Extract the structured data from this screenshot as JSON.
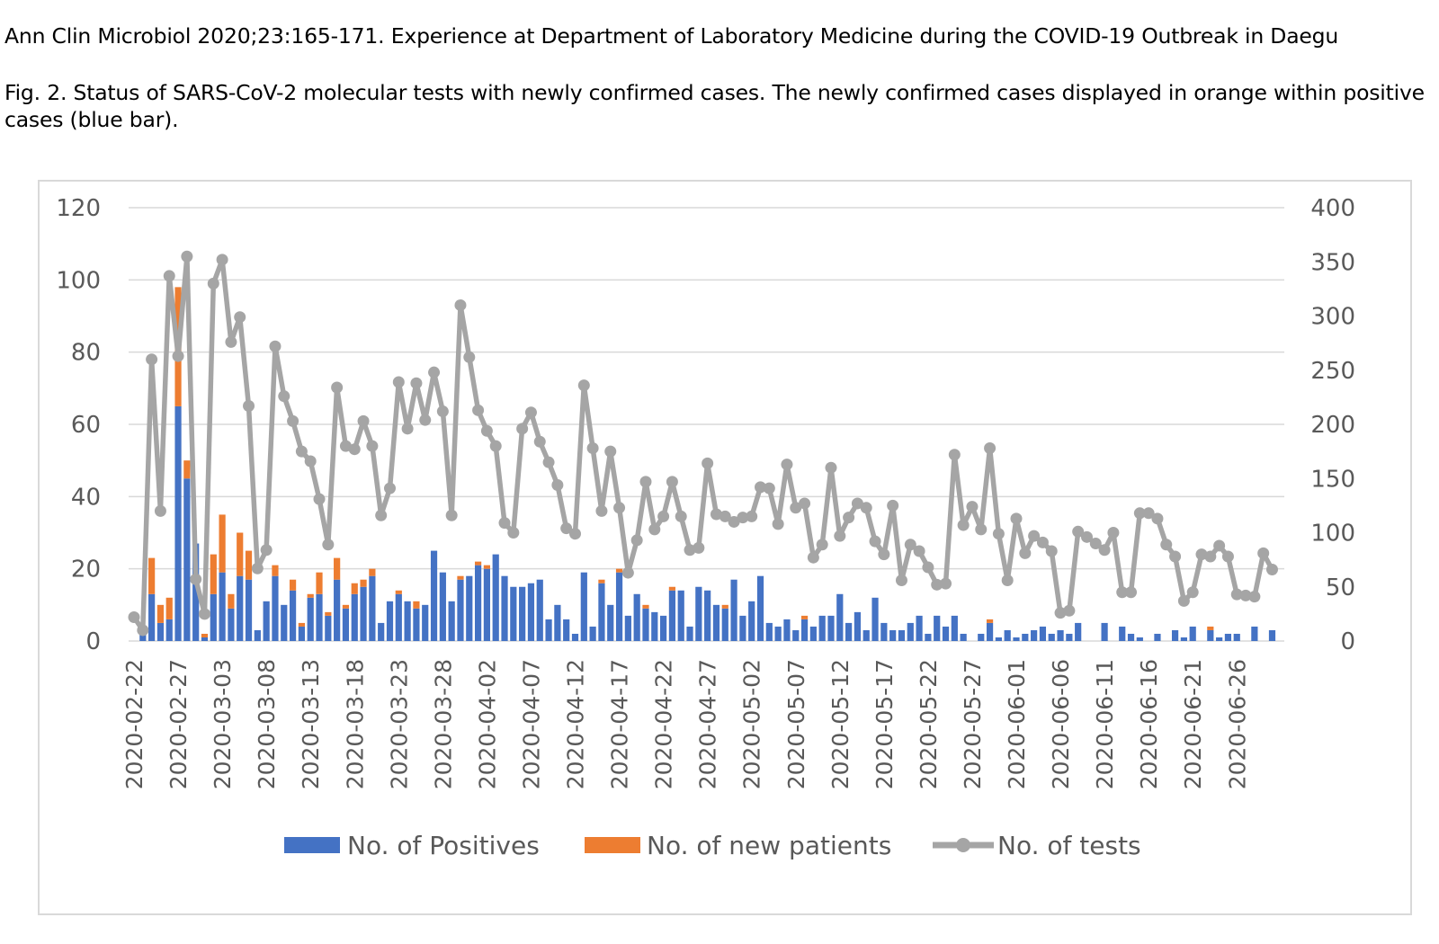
{
  "citation": "Ann Clin Microbiol 2020;23:165-171. Experience at Department of Laboratory Medicine during the COVID-19 Outbreak in Daegu",
  "caption": "Fig. 2. Status of SARS-CoV-2 molecular tests with newly confirmed cases. The newly confirmed cases displayed in orange within positive cases (blue bar).",
  "colors": {
    "positives": "#4472c4",
    "new_patients": "#ed7d31",
    "tests": "#a5a5a5",
    "grid": "#d9d9d9",
    "tick_text": "#595959"
  },
  "chart_data": {
    "type": "bar",
    "combo": "stacked bars (left axis) with line (right axis)",
    "start_date": "2020-02-22",
    "categories": [
      "2020-02-22",
      "2020-02-23",
      "2020-02-24",
      "2020-02-25",
      "2020-02-26",
      "2020-02-27",
      "2020-02-28",
      "2020-02-29",
      "2020-03-01",
      "2020-03-02",
      "2020-03-03",
      "2020-03-04",
      "2020-03-05",
      "2020-03-06",
      "2020-03-07",
      "2020-03-08",
      "2020-03-09",
      "2020-03-10",
      "2020-03-11",
      "2020-03-12",
      "2020-03-13",
      "2020-03-14",
      "2020-03-15",
      "2020-03-16",
      "2020-03-17",
      "2020-03-18",
      "2020-03-19",
      "2020-03-20",
      "2020-03-21",
      "2020-03-22",
      "2020-03-23",
      "2020-03-24",
      "2020-03-25",
      "2020-03-26",
      "2020-03-27",
      "2020-03-28",
      "2020-03-29",
      "2020-03-30",
      "2020-03-31",
      "2020-04-01",
      "2020-04-02",
      "2020-04-03",
      "2020-04-04",
      "2020-04-05",
      "2020-04-06",
      "2020-04-07",
      "2020-04-08",
      "2020-04-09",
      "2020-04-10",
      "2020-04-11",
      "2020-04-12",
      "2020-04-13",
      "2020-04-14",
      "2020-04-15",
      "2020-04-16",
      "2020-04-17",
      "2020-04-18",
      "2020-04-19",
      "2020-04-20",
      "2020-04-21",
      "2020-04-22",
      "2020-04-23",
      "2020-04-24",
      "2020-04-25",
      "2020-04-26",
      "2020-04-27",
      "2020-04-28",
      "2020-04-29",
      "2020-04-30",
      "2020-05-01",
      "2020-05-02",
      "2020-05-03",
      "2020-05-04",
      "2020-05-05",
      "2020-05-06",
      "2020-05-07",
      "2020-05-08",
      "2020-05-09",
      "2020-05-10",
      "2020-05-11",
      "2020-05-12",
      "2020-05-13",
      "2020-05-14",
      "2020-05-15",
      "2020-05-16",
      "2020-05-17",
      "2020-05-18",
      "2020-05-19",
      "2020-05-20",
      "2020-05-21",
      "2020-05-22",
      "2020-05-23",
      "2020-05-24",
      "2020-05-25",
      "2020-05-26",
      "2020-05-27",
      "2020-05-28",
      "2020-05-29",
      "2020-05-30",
      "2020-05-31",
      "2020-06-01",
      "2020-06-02",
      "2020-06-03",
      "2020-06-04",
      "2020-06-05",
      "2020-06-06",
      "2020-06-07",
      "2020-06-08",
      "2020-06-09",
      "2020-06-10",
      "2020-06-11",
      "2020-06-12",
      "2020-06-13",
      "2020-06-14",
      "2020-06-15",
      "2020-06-16",
      "2020-06-17",
      "2020-06-18",
      "2020-06-19",
      "2020-06-20",
      "2020-06-21",
      "2020-06-22",
      "2020-06-23",
      "2020-06-24",
      "2020-06-25",
      "2020-06-26",
      "2020-06-27",
      "2020-06-28",
      "2020-06-29",
      "2020-06-30"
    ],
    "x_tick_labels": [
      "2020-02-22",
      "2020-02-27",
      "2020-03-03",
      "2020-03-08",
      "2020-03-13",
      "2020-03-18",
      "2020-03-23",
      "2020-03-28",
      "2020-04-02",
      "2020-04-07",
      "2020-04-12",
      "2020-04-17",
      "2020-04-22",
      "2020-04-27",
      "2020-05-02",
      "2020-05-07",
      "2020-05-12",
      "2020-05-17",
      "2020-05-22",
      "2020-05-27",
      "2020-06-01",
      "2020-06-06",
      "2020-06-11",
      "2020-06-16",
      "2020-06-21",
      "2020-06-26"
    ],
    "series": [
      {
        "name": "No. of Positives",
        "axis": "left",
        "type": "bar",
        "values": [
          0,
          2,
          13,
          5,
          6,
          65,
          45,
          27,
          1,
          13,
          19,
          9,
          18,
          17,
          3,
          11,
          18,
          10,
          14,
          4,
          12,
          13,
          7,
          17,
          9,
          13,
          15,
          18,
          5,
          11,
          13,
          11,
          9,
          10,
          25,
          19,
          11,
          17,
          18,
          21,
          20,
          24,
          18,
          15,
          15,
          16,
          17,
          6,
          10,
          6,
          2,
          19,
          4,
          16,
          10,
          19,
          7,
          13,
          9,
          8,
          7,
          14,
          14,
          4,
          15,
          14,
          10,
          9,
          17,
          7,
          11,
          18,
          5,
          4,
          6,
          3,
          6,
          4,
          7,
          7,
          13,
          5,
          8,
          3,
          12,
          5,
          3,
          3,
          5,
          7,
          2,
          7,
          4,
          7,
          2,
          0,
          2,
          5,
          1,
          3,
          1,
          2,
          3,
          4,
          2,
          3,
          2,
          5,
          0,
          0,
          5,
          0,
          4,
          2,
          1,
          0,
          2,
          0,
          3,
          1,
          4,
          0,
          3,
          1,
          2,
          2,
          0,
          4,
          0,
          3
        ]
      },
      {
        "name": "No. of new patients",
        "axis": "left",
        "type": "bar",
        "stacked_on": "No. of Positives",
        "values": [
          0,
          0,
          10,
          5,
          6,
          33,
          5,
          0,
          1,
          11,
          16,
          4,
          12,
          8,
          0,
          0,
          3,
          0,
          3,
          1,
          1,
          6,
          1,
          6,
          1,
          3,
          2,
          2,
          0,
          0,
          1,
          0,
          2,
          0,
          0,
          0,
          0,
          1,
          0,
          1,
          1,
          0,
          0,
          0,
          0,
          0,
          0,
          0,
          0,
          0,
          0,
          0,
          0,
          1,
          0,
          1,
          0,
          0,
          1,
          0,
          0,
          1,
          0,
          0,
          0,
          0,
          0,
          1,
          0,
          0,
          0,
          0,
          0,
          0,
          0,
          0,
          1,
          0,
          0,
          0,
          0,
          0,
          0,
          0,
          0,
          0,
          0,
          0,
          0,
          0,
          0,
          0,
          0,
          0,
          0,
          0,
          0,
          1,
          0,
          0,
          0,
          0,
          0,
          0,
          0,
          0,
          0,
          0,
          0,
          0,
          0,
          0,
          0,
          0,
          0,
          0,
          0,
          0,
          0,
          0,
          0,
          0,
          1,
          0,
          0,
          0,
          0,
          0,
          0,
          0
        ]
      },
      {
        "name": "No. of tests",
        "axis": "right",
        "type": "line",
        "values": [
          22,
          10,
          260,
          120,
          337,
          263,
          355,
          57,
          25,
          330,
          352,
          276,
          299,
          217,
          67,
          84,
          272,
          226,
          203,
          175,
          166,
          131,
          89,
          234,
          180,
          177,
          203,
          180,
          116,
          141,
          239,
          196,
          238,
          204,
          248,
          212,
          116,
          310,
          262,
          213,
          194,
          180,
          109,
          100,
          196,
          211,
          184,
          165,
          144,
          104,
          99,
          236,
          178,
          120,
          175,
          123,
          63,
          93,
          147,
          103,
          115,
          147,
          115,
          84,
          86,
          164,
          117,
          115,
          110,
          114,
          115,
          142,
          141,
          108,
          163,
          123,
          127,
          77,
          89,
          160,
          97,
          114,
          127,
          123,
          92,
          80,
          125,
          56,
          89,
          83,
          68,
          52,
          53,
          172,
          107,
          124,
          103,
          178,
          99,
          56,
          113,
          81,
          97,
          91,
          83,
          26,
          28,
          101,
          96,
          90,
          84,
          100,
          45,
          45,
          118,
          118,
          113,
          89,
          78,
          37,
          45,
          80,
          78,
          88,
          78,
          43,
          42,
          41,
          81,
          66
        ]
      }
    ],
    "ylim_left": [
      0,
      120
    ],
    "yticks_left": [
      0,
      20,
      40,
      60,
      80,
      100,
      120
    ],
    "ylim_right": [
      0,
      400
    ],
    "yticks_right": [
      0,
      50,
      100,
      150,
      200,
      250,
      300,
      350,
      400
    ],
    "grid": true,
    "legend_position": "bottom"
  }
}
